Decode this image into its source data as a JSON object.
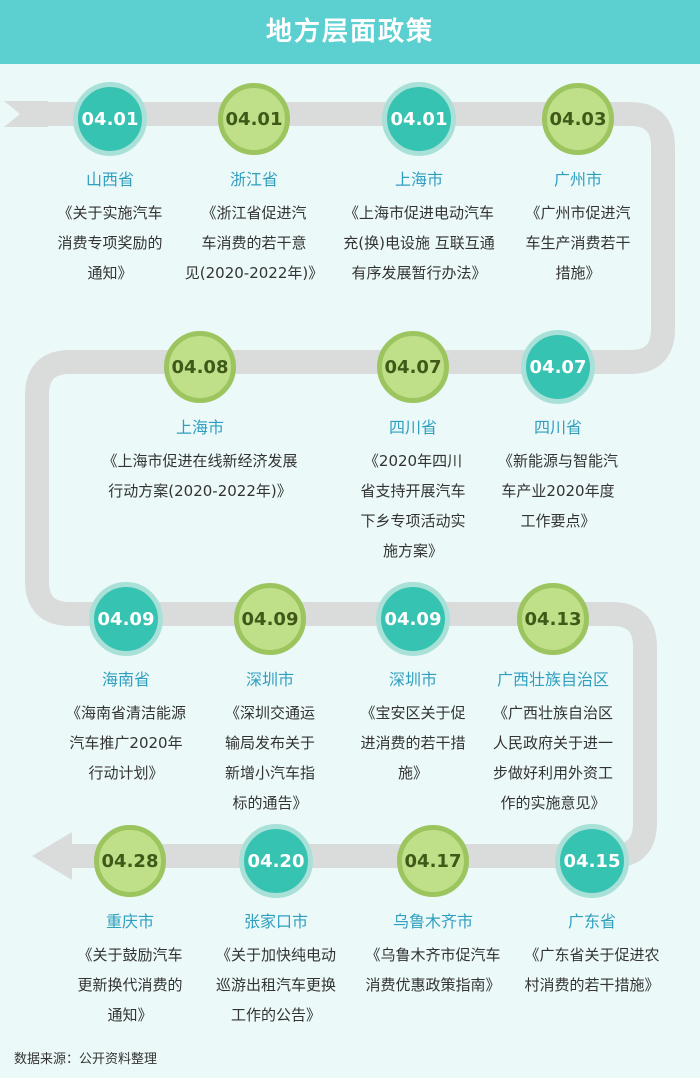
{
  "title": "地方层面政策",
  "source": "数据来源：公开资料整理",
  "colors": {
    "header": "#5ccfd0",
    "path": "#dadcdc",
    "region_text": "#2f9fc0",
    "teal": "#37c3b2",
    "green": "#bfe089"
  },
  "rows": [
    {
      "items": [
        {
          "date": "04.01",
          "style": "teal",
          "region": "山西省",
          "lines": [
            "《关于实施汽车",
            "消费专项奖励的",
            "通知》"
          ]
        },
        {
          "date": "04.01",
          "style": "green",
          "region": "浙江省",
          "lines": [
            "《浙江省促进汽",
            "车消费的若干意",
            "见(2020-2022年)》"
          ]
        },
        {
          "date": "04.01",
          "style": "teal",
          "region": "上海市",
          "lines": [
            "《上海市促进电动汽车",
            "充(换)电设施 互联互通",
            "有序发展暂行办法》"
          ]
        },
        {
          "date": "04.03",
          "style": "green",
          "region": "广州市",
          "lines": [
            "《广州市促进汽",
            "车生产消费若干",
            "措施》"
          ]
        }
      ]
    },
    {
      "items": [
        {
          "date": "04.08",
          "style": "green",
          "region": "上海市",
          "lines": [
            "《上海市促进在线新经济发展",
            "行动方案(2020-2022年)》"
          ]
        },
        {
          "date": "04.07",
          "style": "green",
          "region": "四川省",
          "lines": [
            "《2020年四川",
            "省支持开展汽车",
            "下乡专项活动实",
            "施方案》"
          ]
        },
        {
          "date": "04.07",
          "style": "teal",
          "region": "四川省",
          "lines": [
            "《新能源与智能汽",
            "车产业2020年度",
            "工作要点》"
          ]
        }
      ]
    },
    {
      "items": [
        {
          "date": "04.09",
          "style": "teal",
          "region": "海南省",
          "lines": [
            "《海南省清洁能源",
            "汽车推广2020年",
            "行动计划》"
          ]
        },
        {
          "date": "04.09",
          "style": "green",
          "region": "深圳市",
          "lines": [
            "《深圳交通运",
            "输局发布关于",
            "新增小汽车指",
            "标的通告》"
          ]
        },
        {
          "date": "04.09",
          "style": "teal",
          "region": "深圳市",
          "lines": [
            "《宝安区关于促",
            "进消费的若干措",
            "施》"
          ]
        },
        {
          "date": "04.13",
          "style": "green",
          "region": "广西壮族自治区",
          "lines": [
            "《广西壮族自治区",
            "人民政府关于进一",
            "步做好利用外资工",
            "作的实施意见》"
          ]
        }
      ]
    },
    {
      "items": [
        {
          "date": "04.28",
          "style": "green",
          "region": "重庆市",
          "lines": [
            "《关于鼓励汽车",
            "更新换代消费的",
            "通知》"
          ]
        },
        {
          "date": "04.20",
          "style": "teal",
          "region": "张家口市",
          "lines": [
            "《关于加快纯电动",
            "巡游出租汽车更换",
            "工作的公告》"
          ]
        },
        {
          "date": "04.17",
          "style": "green",
          "region": "乌鲁木齐市",
          "lines": [
            "《乌鲁木齐市促汽车",
            "消费优惠政策指南》"
          ]
        },
        {
          "date": "04.15",
          "style": "teal",
          "region": "广东省",
          "lines": [
            "《广东省关于促进农",
            "村消费的若干措施》"
          ]
        }
      ]
    }
  ]
}
